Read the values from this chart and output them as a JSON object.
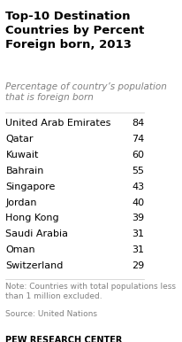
{
  "title": "Top-10 Destination\nCountries by Percent\nForeign born, 2013",
  "subtitle": "Percentage of country’s population\nthat is foreign born",
  "countries": [
    "United Arab Emirates",
    "Qatar",
    "Kuwait",
    "Bahrain",
    "Singapore",
    "Jordan",
    "Hong Kong",
    "Saudi Arabia",
    "Oman",
    "Switzerland"
  ],
  "values": [
    84,
    74,
    60,
    55,
    43,
    40,
    39,
    31,
    31,
    29
  ],
  "note": "Note: Countries with total populations less\nthan 1 million excluded.",
  "source": "Source: United Nations",
  "footer": "PEW RESEARCH CENTER",
  "bg_color": "#ffffff",
  "title_color": "#000000",
  "subtitle_color": "#808080",
  "country_color": "#000000",
  "value_color": "#000000",
  "note_color": "#808080",
  "source_color": "#808080",
  "footer_color": "#000000",
  "title_fontsize": 9.5,
  "subtitle_fontsize": 7.5,
  "country_fontsize": 8.0,
  "value_fontsize": 8.0,
  "note_fontsize": 6.5,
  "footer_fontsize": 7.0
}
